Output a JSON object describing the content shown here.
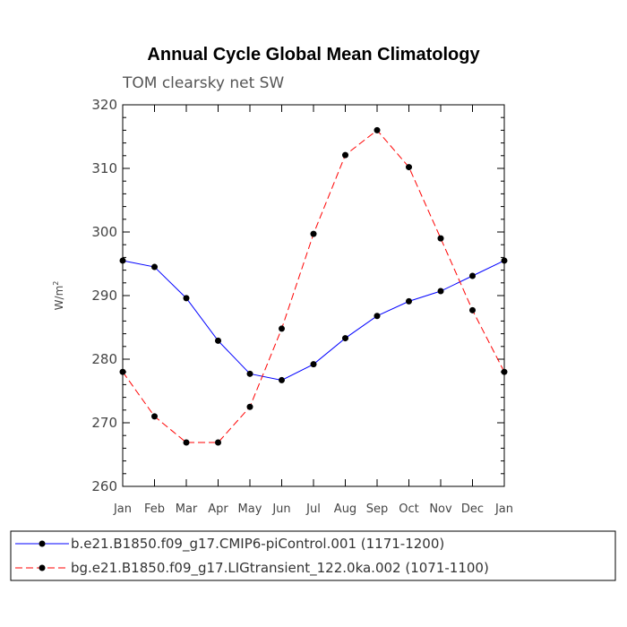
{
  "chart_data": {
    "type": "line",
    "title": "Annual Cycle Global Mean Climatology",
    "subtitle": "TOM clearsky net SW",
    "ylabel": "W/m",
    "ylabel_sup": "2",
    "ylim": [
      260,
      320
    ],
    "yticks": [
      "260",
      "270",
      "280",
      "290",
      "300",
      "310",
      "320"
    ],
    "categories": [
      "Jan",
      "Feb",
      "Mar",
      "Apr",
      "May",
      "Jun",
      "Jul",
      "Aug",
      "Sep",
      "Oct",
      "Nov",
      "Dec",
      "Jan"
    ],
    "legend_placement": "bottom",
    "grid": false,
    "series": [
      {
        "name": "b.e21.B1850.f09_g17.CMIP6-piControl.001 (1171-1200)",
        "color": "#0000ff",
        "dash": "solid",
        "values": [
          295.5,
          294.5,
          289.6,
          282.9,
          277.7,
          276.7,
          279.2,
          283.3,
          286.8,
          289.1,
          290.7,
          293.1,
          295.5
        ]
      },
      {
        "name": "bg.e21.B1850.f09_g17.LIGtransient_122.0ka.002 (1071-1100)",
        "color": "#ff0000",
        "dash": "dashed",
        "values": [
          278.0,
          271.0,
          266.9,
          266.9,
          272.5,
          284.8,
          299.7,
          312.1,
          316.0,
          310.2,
          299.0,
          287.7,
          278.0
        ]
      }
    ]
  }
}
